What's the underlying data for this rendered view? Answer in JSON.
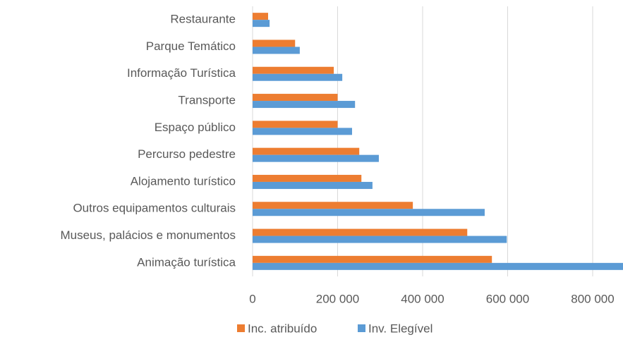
{
  "chart_data": {
    "type": "hbar",
    "categories": [
      "Restaurante",
      "Parque Temático",
      "Informação Turística",
      "Transporte",
      "Espaço público",
      "Percurso pedestre",
      "Alojamento turístico",
      "Outros equipamentos culturais",
      "Museus, palácios e monumentos",
      "Animação turística"
    ],
    "series": [
      {
        "name": "Inc. atribuído",
        "color": "#ed7d31",
        "values": [
          36500,
          100000,
          191000,
          200000,
          200000,
          251000,
          256000,
          377000,
          505000,
          563000
        ]
      },
      {
        "name": "Inv. Elegível",
        "color": "#5b9bd5",
        "values": [
          40000,
          111000,
          211000,
          241000,
          234000,
          297000,
          282000,
          546000,
          598000,
          880000
        ]
      }
    ],
    "xlim": [
      0,
      1000000
    ],
    "xticks": [
      0,
      {
        "value": 200000,
        "label": "200 000"
      },
      {
        "value": 400000,
        "label": "400 000"
      },
      {
        "value": 600000,
        "label": "600 000"
      },
      {
        "value": 800000,
        "label": "800 000"
      }
    ],
    "grid": true,
    "legend": "bottom"
  }
}
